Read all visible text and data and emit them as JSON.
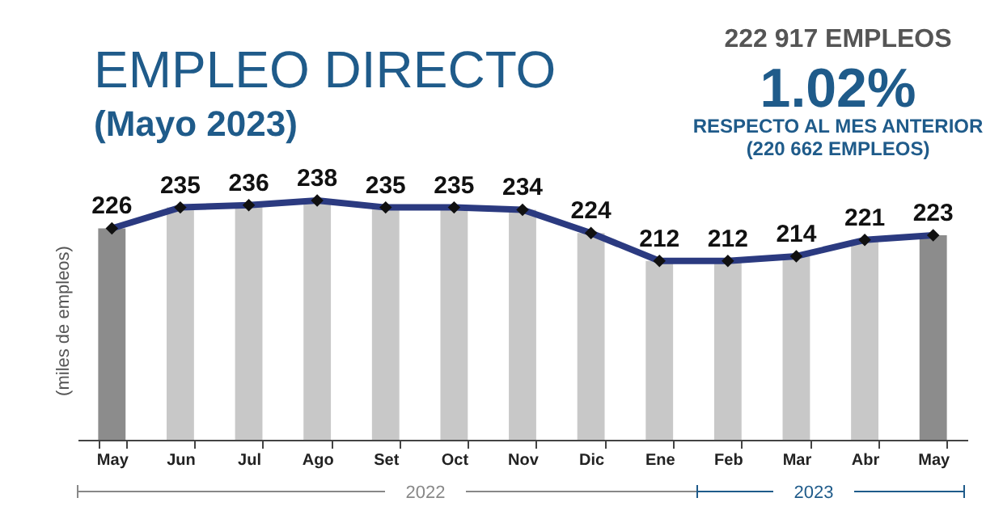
{
  "chart_data": {
    "type": "bar",
    "title": "EMPLEO DIRECTO",
    "subtitle": "(Mayo 2023)",
    "ylabel": "(miles de empleos)",
    "categories": [
      "May",
      "Jun",
      "Jul",
      "Ago",
      "Set",
      "Oct",
      "Nov",
      "Dic",
      "Ene",
      "Feb",
      "Mar",
      "Abr",
      "May"
    ],
    "series": [
      {
        "colors": [
          "#8c8c8c",
          "#c8c8c8",
          "#c8c8c8",
          "#c8c8c8",
          "#c8c8c8",
          "#c8c8c8",
          "#c8c8c8",
          "#c8c8c8",
          "#c8c8c8",
          "#c8c8c8",
          "#c8c8c8",
          "#c8c8c8",
          "#8c8c8c"
        ],
        "values": [
          226,
          235,
          236,
          238,
          235,
          235,
          234,
          224,
          212,
          212,
          214,
          221,
          223
        ]
      },
      {
        "type": "line",
        "color": "#2b3a80",
        "marker": "diamond",
        "data_labels": true,
        "values": [
          226,
          235,
          236,
          238,
          235,
          235,
          234,
          224,
          212,
          212,
          214,
          221,
          223
        ]
      }
    ],
    "ylim": [
      135,
      238
    ],
    "grid": false,
    "tick_labels": "x",
    "annotations": [
      "222 917 EMPLEOS",
      "1.02%",
      "RESPECTO AL MES ANTERIOR",
      "(220 662 EMPLEOS)",
      "2022",
      "2023"
    ]
  }
}
